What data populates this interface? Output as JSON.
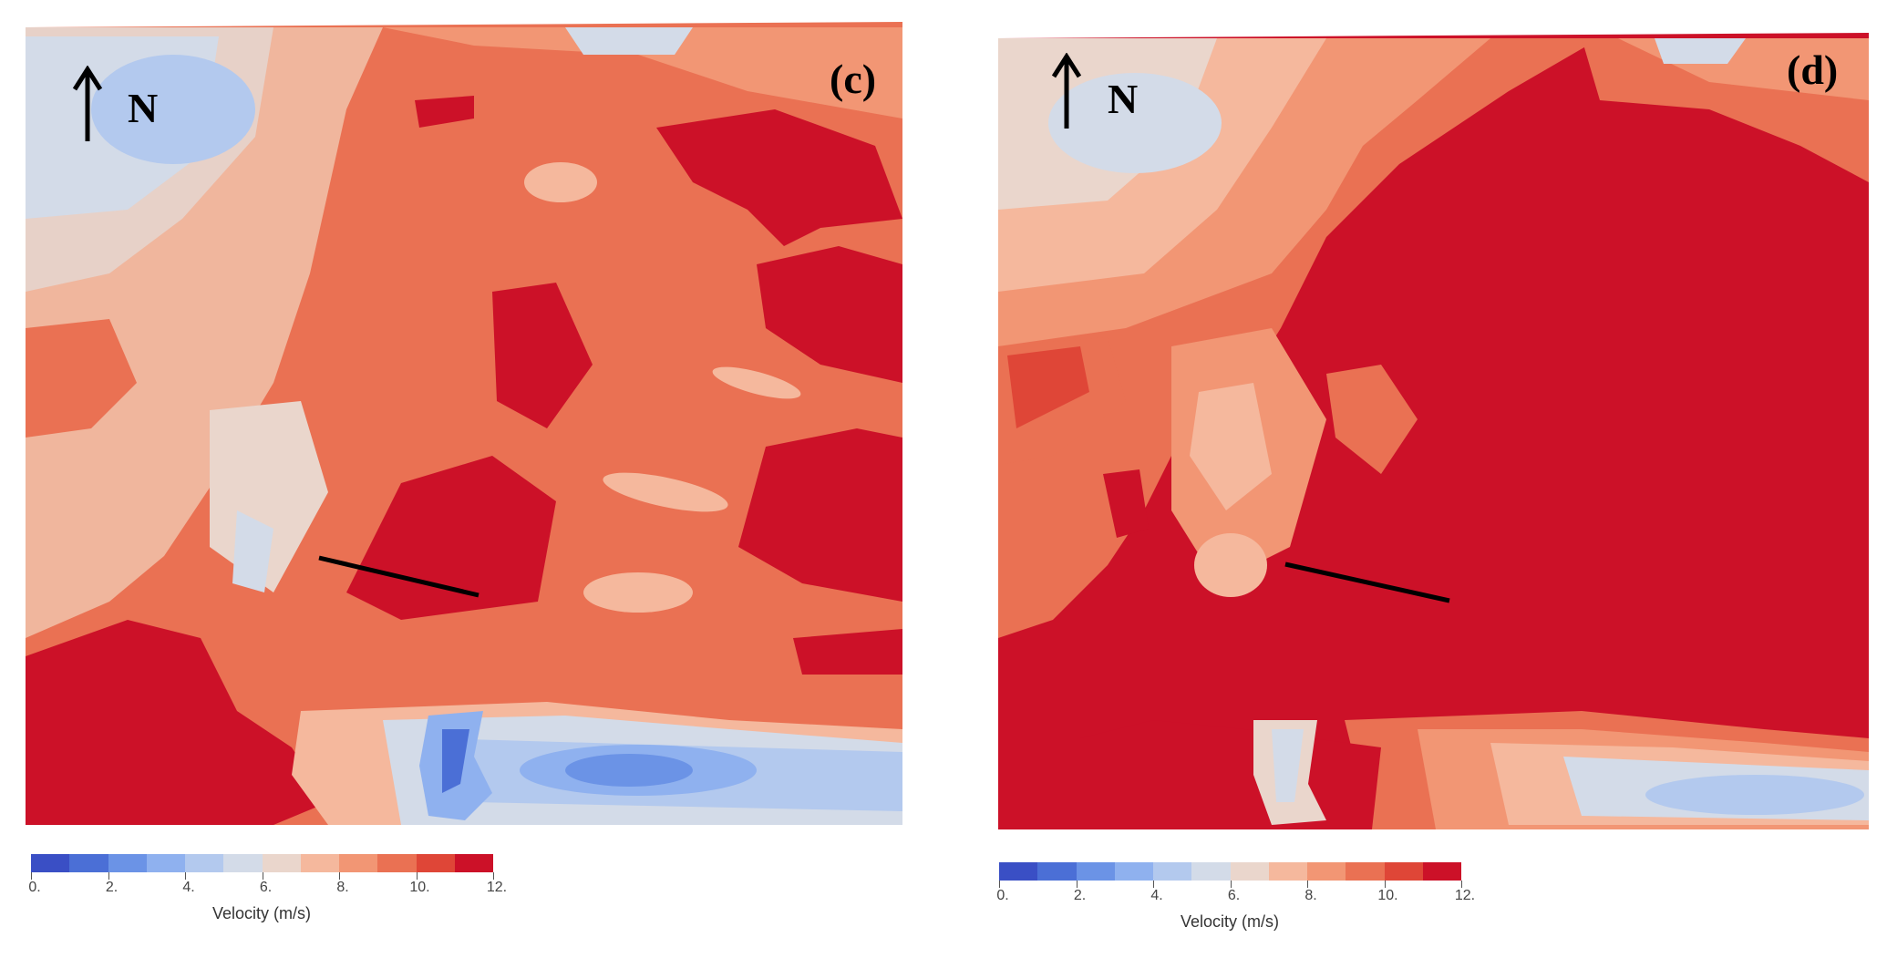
{
  "panels": [
    {
      "id": "c",
      "label": "(c)",
      "north_label": "N"
    },
    {
      "id": "d",
      "label": "(d)",
      "north_label": "N"
    }
  ],
  "legend": {
    "title": "Velocity (m/s)",
    "ticks": [
      "0.",
      "2.",
      "4.",
      "6.",
      "8.",
      "10.",
      "12."
    ],
    "range": [
      0,
      12
    ],
    "colors": [
      "#3a4fc5",
      "#4b6fd6",
      "#6b93e6",
      "#8fb1ef",
      "#b3c9ee",
      "#d3dbe8",
      "#ead6cc",
      "#f5b89d",
      "#f29674",
      "#ea7153",
      "#df4637",
      "#cc1128"
    ]
  },
  "colors": {
    "low": "#6b93e6",
    "mid_low": "#c9d4e6",
    "mid": "#ead2c6",
    "mid_high": "#f19a78",
    "high": "#e0563f",
    "max": "#cc1128"
  }
}
